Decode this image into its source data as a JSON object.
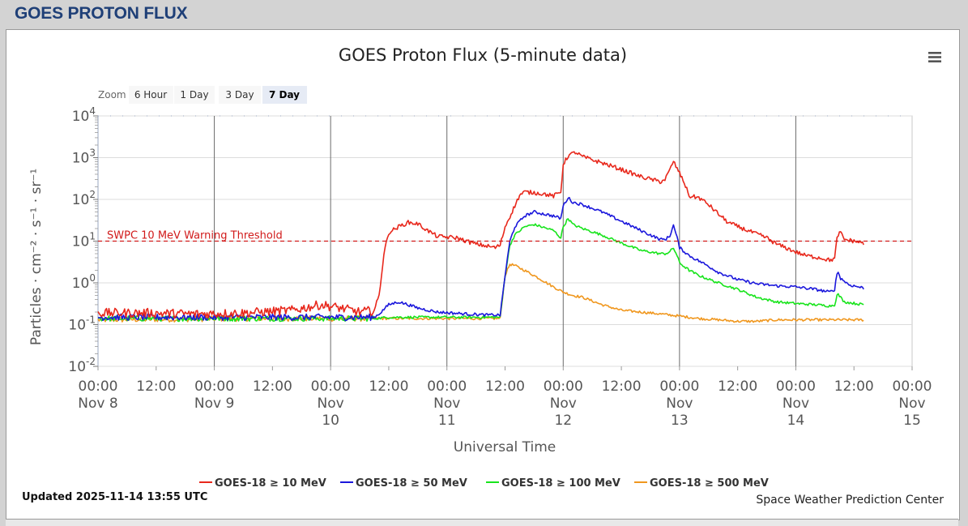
{
  "page": {
    "title": "GOES PROTON FLUX"
  },
  "zoom": {
    "label": "Zoom",
    "buttons": [
      "6 Hour",
      "1 Day",
      "3 Day",
      "7 Day"
    ],
    "selected": "7 Day"
  },
  "menu": {
    "icon": "hamburger-menu-icon"
  },
  "footer": {
    "updated": "Updated 2025-11-14 13:55 UTC",
    "credit": "Space Weather Prediction Center"
  },
  "chart_data": {
    "type": "line",
    "title": "GOES Proton Flux (5-minute data)",
    "xlabel": "Universal Time",
    "ylabel": "Particles · cm⁻² · s⁻¹ · sr⁻¹",
    "yscale": "log",
    "ylim": [
      0.01,
      10000
    ],
    "y_tick_labels": [
      [
        "10",
        "-2"
      ],
      [
        "10",
        "-1"
      ],
      [
        "10",
        "0"
      ],
      [
        "10",
        "1"
      ],
      [
        "10",
        "2"
      ],
      [
        "10",
        "3"
      ],
      [
        "10",
        "4"
      ]
    ],
    "x_range_hours_from_nov8": [
      0,
      168
    ],
    "x_ticks": [
      {
        "t": 0,
        "lines": [
          "00:00",
          "Nov 8"
        ]
      },
      {
        "t": 12,
        "lines": [
          "12:00"
        ]
      },
      {
        "t": 24,
        "lines": [
          "00:00",
          "Nov 9"
        ]
      },
      {
        "t": 36,
        "lines": [
          "12:00"
        ]
      },
      {
        "t": 48,
        "lines": [
          "00:00",
          "Nov",
          "10"
        ]
      },
      {
        "t": 60,
        "lines": [
          "12:00"
        ]
      },
      {
        "t": 72,
        "lines": [
          "00:00",
          "Nov",
          "11"
        ]
      },
      {
        "t": 84,
        "lines": [
          "12:00"
        ]
      },
      {
        "t": 96,
        "lines": [
          "00:00",
          "Nov",
          "12"
        ]
      },
      {
        "t": 108,
        "lines": [
          "12:00"
        ]
      },
      {
        "t": 120,
        "lines": [
          "00:00",
          "Nov",
          "13"
        ]
      },
      {
        "t": 132,
        "lines": [
          "12:00"
        ]
      },
      {
        "t": 144,
        "lines": [
          "00:00",
          "Nov",
          "14"
        ]
      },
      {
        "t": 156,
        "lines": [
          "12:00"
        ]
      },
      {
        "t": 168,
        "lines": [
          "00:00",
          "Nov",
          "15"
        ]
      }
    ],
    "day_lines": [
      24,
      48,
      72,
      96,
      120,
      144
    ],
    "threshold": {
      "value": 10,
      "label": "SWPC 10 MeV Warning Threshold",
      "color": "#d11a1a"
    },
    "grid": true,
    "legend_position": "bottom",
    "series": [
      {
        "name": "GOES-18 ≥ 10 MeV",
        "color": "#e8281c",
        "noise": 0.05,
        "points": [
          [
            0,
            0.19
          ],
          [
            10,
            0.19
          ],
          [
            20,
            0.18
          ],
          [
            30,
            0.19
          ],
          [
            40,
            0.22
          ],
          [
            46,
            0.3
          ],
          [
            50,
            0.25
          ],
          [
            54,
            0.2
          ],
          [
            57,
            0.22
          ],
          [
            58,
            0.5
          ],
          [
            59,
            5
          ],
          [
            60,
            16
          ],
          [
            62,
            22
          ],
          [
            64,
            28
          ],
          [
            66,
            26
          ],
          [
            68,
            18
          ],
          [
            70,
            13
          ],
          [
            74,
            12
          ],
          [
            76,
            10
          ],
          [
            78,
            8.5
          ],
          [
            82,
            7
          ],
          [
            83,
            8
          ],
          [
            84,
            22
          ],
          [
            86,
            70
          ],
          [
            87,
            125
          ],
          [
            88,
            150
          ],
          [
            90,
            145
          ],
          [
            92,
            135
          ],
          [
            94,
            120
          ],
          [
            95.5,
            150
          ],
          [
            96,
            700
          ],
          [
            97,
            1100
          ],
          [
            98.5,
            1350
          ],
          [
            100,
            1050
          ],
          [
            104,
            750
          ],
          [
            108,
            520
          ],
          [
            112,
            350
          ],
          [
            116,
            265
          ],
          [
            117,
            300
          ],
          [
            118,
            500
          ],
          [
            118.7,
            820
          ],
          [
            119.5,
            550
          ],
          [
            121,
            250
          ],
          [
            122,
            120
          ],
          [
            124,
            110
          ],
          [
            126,
            75
          ],
          [
            128,
            45
          ],
          [
            130,
            28
          ],
          [
            134,
            18
          ],
          [
            138,
            12
          ],
          [
            140,
            8.5
          ],
          [
            144,
            5.5
          ],
          [
            146,
            4.5
          ],
          [
            149,
            4.0
          ],
          [
            151,
            3.5
          ],
          [
            152,
            3.8
          ],
          [
            152.6,
            14
          ],
          [
            153.2,
            16
          ],
          [
            154,
            11
          ],
          [
            156,
            10
          ],
          [
            158,
            9
          ]
        ]
      },
      {
        "name": "GOES-18 ≥ 50 MeV",
        "color": "#1b17dc",
        "noise": 0.035,
        "points": [
          [
            0,
            0.15
          ],
          [
            30,
            0.15
          ],
          [
            57,
            0.15
          ],
          [
            58,
            0.18
          ],
          [
            60,
            0.3
          ],
          [
            62,
            0.35
          ],
          [
            64,
            0.3
          ],
          [
            66,
            0.25
          ],
          [
            70,
            0.2
          ],
          [
            76,
            0.18
          ],
          [
            80,
            0.17
          ],
          [
            83,
            0.17
          ],
          [
            84,
            1.5
          ],
          [
            85,
            10
          ],
          [
            86,
            22
          ],
          [
            88,
            40
          ],
          [
            90,
            50
          ],
          [
            94,
            40
          ],
          [
            95.5,
            35
          ],
          [
            96,
            70
          ],
          [
            97,
            110
          ],
          [
            98,
            85
          ],
          [
            100,
            75
          ],
          [
            104,
            50
          ],
          [
            108,
            30
          ],
          [
            112,
            18
          ],
          [
            116,
            11
          ],
          [
            117,
            11
          ],
          [
            118,
            13
          ],
          [
            118.7,
            25
          ],
          [
            119.5,
            12
          ],
          [
            120,
            7
          ],
          [
            122,
            4.5
          ],
          [
            126,
            2.5
          ],
          [
            128,
            1.8
          ],
          [
            132,
            1.2
          ],
          [
            136,
            0.95
          ],
          [
            140,
            0.85
          ],
          [
            144,
            0.8
          ],
          [
            148,
            0.7
          ],
          [
            151,
            0.6
          ],
          [
            152,
            0.7
          ],
          [
            152.6,
            2.0
          ],
          [
            153.2,
            1.3
          ],
          [
            155,
            0.9
          ],
          [
            158,
            0.75
          ]
        ]
      },
      {
        "name": "GOES-18 ≥ 100 MeV",
        "color": "#18e41c",
        "noise": 0.03,
        "points": [
          [
            0,
            0.14
          ],
          [
            30,
            0.14
          ],
          [
            57,
            0.14
          ],
          [
            60,
            0.15
          ],
          [
            70,
            0.15
          ],
          [
            83,
            0.15
          ],
          [
            84,
            1.5
          ],
          [
            85,
            8
          ],
          [
            86,
            14
          ],
          [
            88,
            22
          ],
          [
            90,
            25
          ],
          [
            94,
            18
          ],
          [
            95.5,
            12
          ],
          [
            96,
            22
          ],
          [
            97,
            35
          ],
          [
            98,
            25
          ],
          [
            100,
            20
          ],
          [
            104,
            14
          ],
          [
            108,
            9
          ],
          [
            112,
            6
          ],
          [
            116,
            5
          ],
          [
            117,
            5
          ],
          [
            118,
            5.5
          ],
          [
            118.7,
            7
          ],
          [
            119.5,
            4.5
          ],
          [
            120,
            3
          ],
          [
            122,
            2
          ],
          [
            124,
            1.5
          ],
          [
            128,
            1.0
          ],
          [
            132,
            0.7
          ],
          [
            136,
            0.45
          ],
          [
            140,
            0.35
          ],
          [
            144,
            0.32
          ],
          [
            148,
            0.3
          ],
          [
            151,
            0.28
          ],
          [
            152,
            0.3
          ],
          [
            152.6,
            0.55
          ],
          [
            154,
            0.35
          ],
          [
            158,
            0.3
          ]
        ]
      },
      {
        "name": "GOES-18 ≥ 500 MeV",
        "color": "#f0971e",
        "noise": 0.03,
        "points": [
          [
            0,
            0.13
          ],
          [
            30,
            0.14
          ],
          [
            57,
            0.14
          ],
          [
            70,
            0.14
          ],
          [
            83,
            0.14
          ],
          [
            84,
            1.5
          ],
          [
            85,
            2.8
          ],
          [
            86,
            2.6
          ],
          [
            88,
            2.0
          ],
          [
            90,
            1.5
          ],
          [
            92,
            1.1
          ],
          [
            94,
            0.8
          ],
          [
            96,
            0.6
          ],
          [
            98,
            0.5
          ],
          [
            100,
            0.45
          ],
          [
            104,
            0.3
          ],
          [
            108,
            0.22
          ],
          [
            112,
            0.2
          ],
          [
            116,
            0.18
          ],
          [
            120,
            0.16
          ],
          [
            124,
            0.14
          ],
          [
            128,
            0.13
          ],
          [
            132,
            0.12
          ],
          [
            136,
            0.12
          ],
          [
            140,
            0.13
          ],
          [
            144,
            0.13
          ],
          [
            148,
            0.13
          ],
          [
            152,
            0.13
          ],
          [
            154,
            0.13
          ],
          [
            158,
            0.13
          ]
        ]
      }
    ]
  }
}
